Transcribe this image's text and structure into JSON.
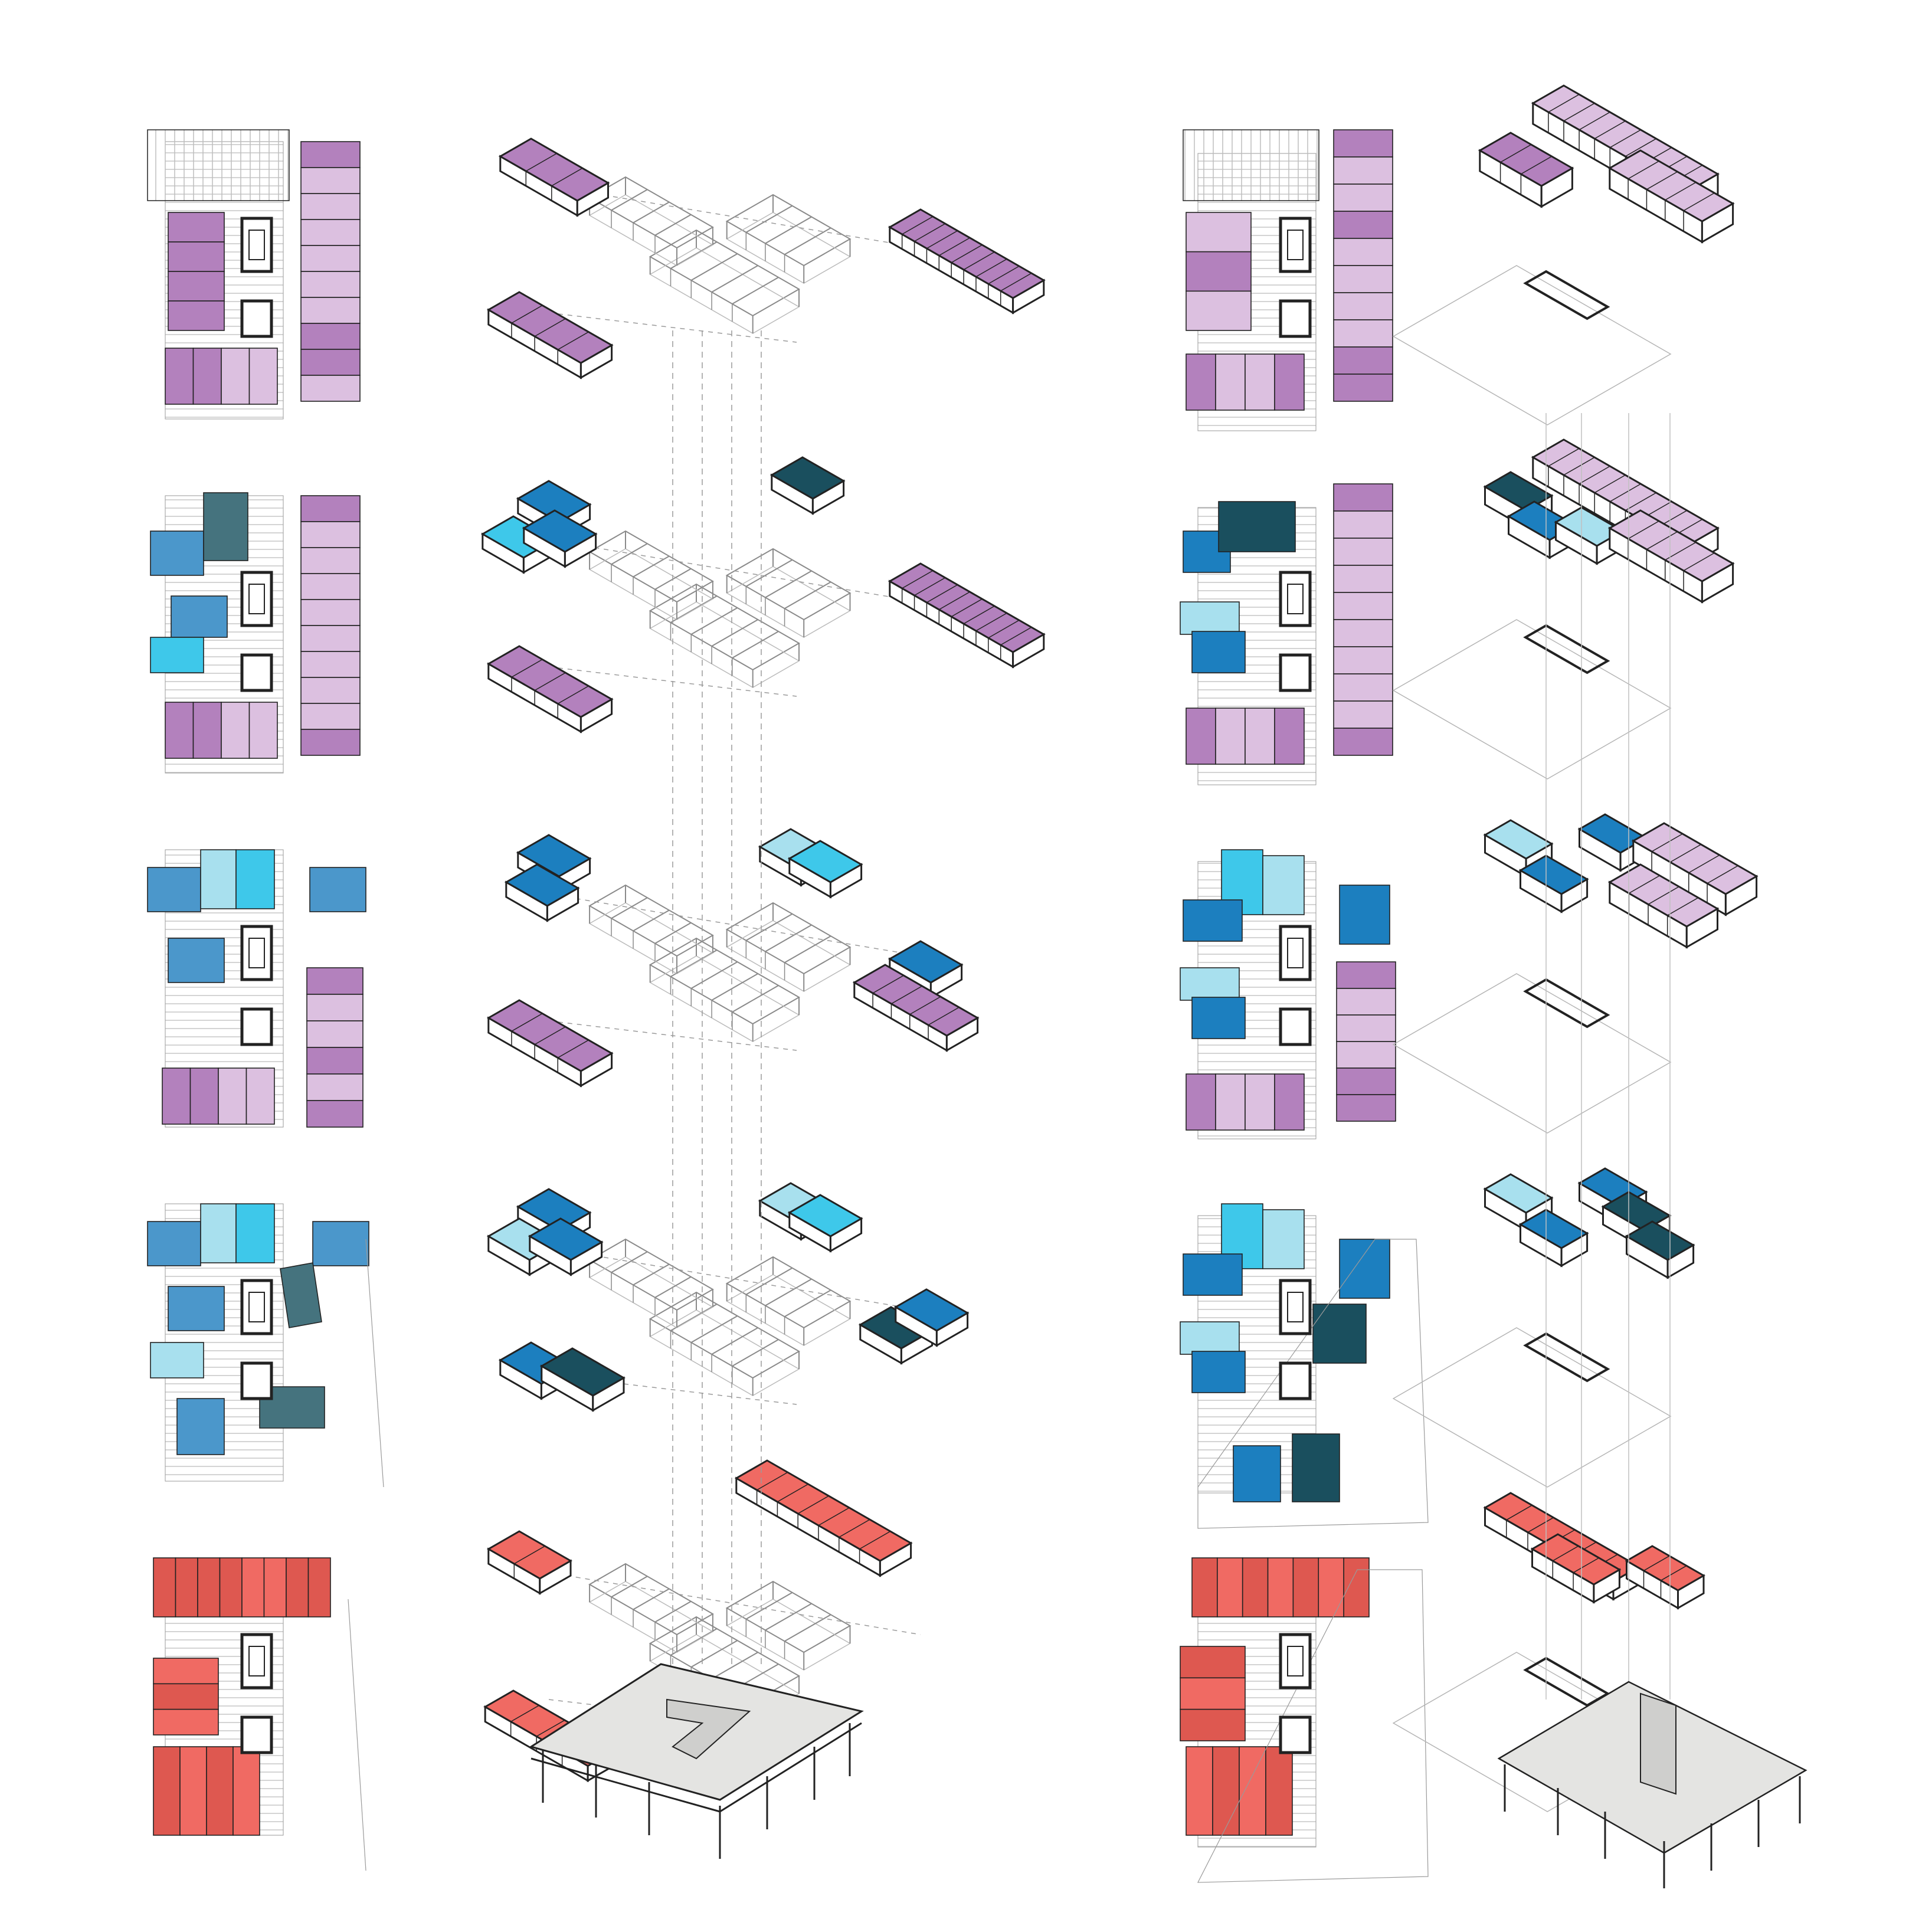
{
  "colors": {
    "purple": "#b381bd",
    "purple_light": "#dcc0e0",
    "blue": "#1c7fbf",
    "blue_mid": "#4b97cb",
    "cyan": "#3ec8ea",
    "cyan_light": "#a8e0ee",
    "teal": "#1a4f5e",
    "teal_mid": "#45737e",
    "red": "#de5850",
    "red_light": "#f06a63",
    "slab": "#e4e4e2",
    "line": "#222222",
    "thin": "#9a9a9a",
    "hatch": "#c6c6c6"
  },
  "diagram": {
    "columns": [
      {
        "id": "plans-left",
        "kind": "floor-plans"
      },
      {
        "id": "axo-left",
        "kind": "exploded-axonometric"
      },
      {
        "id": "plans-right",
        "kind": "floor-plans"
      },
      {
        "id": "axo-right",
        "kind": "exploded-axonometric"
      }
    ],
    "levels": [
      {
        "id": "level-5",
        "palette": "purple"
      },
      {
        "id": "level-4",
        "palette": "purple-blue"
      },
      {
        "id": "level-3",
        "palette": "blue-purple"
      },
      {
        "id": "level-2",
        "palette": "blue-teal"
      },
      {
        "id": "level-1",
        "palette": "red"
      }
    ]
  }
}
